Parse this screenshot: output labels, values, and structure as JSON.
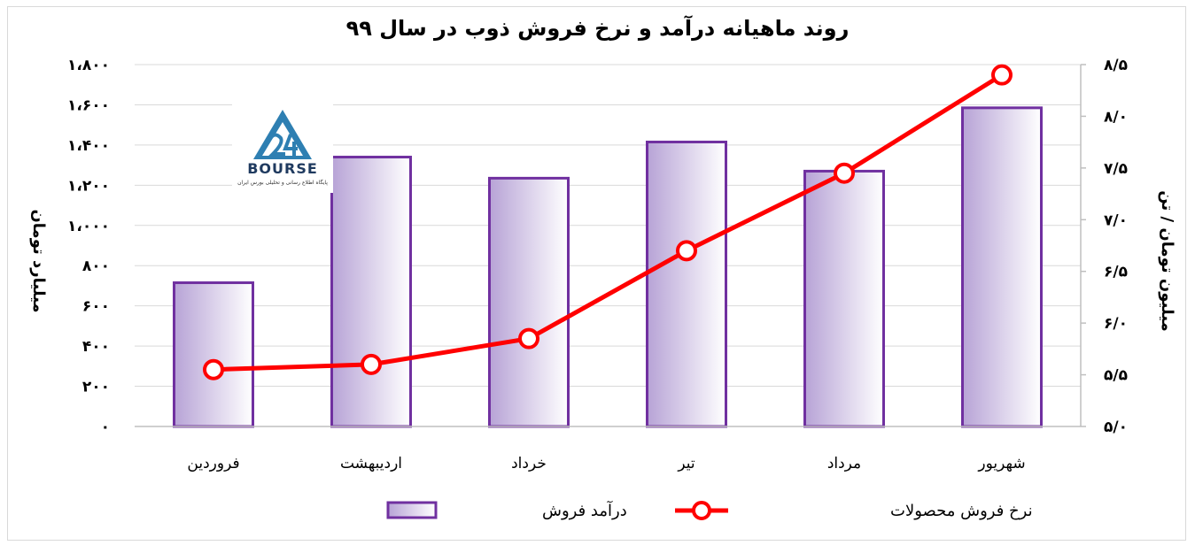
{
  "chart_data": {
    "type": "bar",
    "title": "روند ماهیانه درآمد و نرخ فروش ذوب در سال ۹۹",
    "categories": [
      "فروردین",
      "اردیبهشت",
      "خرداد",
      "تیر",
      "مرداد",
      "شهریور"
    ],
    "series": [
      {
        "name": "درآمد فروش",
        "type": "bar",
        "axis": "left",
        "values": [
          715,
          1340,
          1235,
          1415,
          1270,
          1585
        ]
      },
      {
        "name": "نرخ فروش محصولات",
        "type": "line",
        "axis": "right",
        "values": [
          5.55,
          5.6,
          5.85,
          6.7,
          7.45,
          8.4
        ]
      }
    ],
    "y_left": {
      "label": "میلیارد تومان",
      "ylim": [
        0,
        1800
      ],
      "ticks": [
        0,
        200,
        400,
        600,
        800,
        1000,
        1200,
        1400,
        1600,
        1800
      ],
      "tick_labels": [
        "۰",
        "۲۰۰",
        "۴۰۰",
        "۶۰۰",
        "۸۰۰",
        "۱،۰۰۰",
        "۱،۲۰۰",
        "۱،۴۰۰",
        "۱،۶۰۰",
        "۱،۸۰۰"
      ]
    },
    "y_right": {
      "label": "میلیون تومان / تن",
      "ylim": [
        5.0,
        8.5
      ],
      "ticks": [
        5.0,
        5.5,
        6.0,
        6.5,
        7.0,
        7.5,
        8.0,
        8.5
      ],
      "tick_labels": [
        "۵/۰",
        "۵/۵",
        "۶/۰",
        "۶/۵",
        "۷/۰",
        "۷/۵",
        "۸/۰",
        "۸/۵"
      ]
    },
    "grid": true,
    "legend_position": "bottom",
    "colors": {
      "bar_fill_dark": "#b7a3d6",
      "bar_fill_light": "#ffffff",
      "bar_border": "#7030a0",
      "line": "#ff0000",
      "marker_fill": "#ffffff"
    }
  },
  "logo": {
    "text": "BOURSE",
    "subtitle": "پایگاه اطلاع رسانی و تحلیلی بورس ایران"
  }
}
